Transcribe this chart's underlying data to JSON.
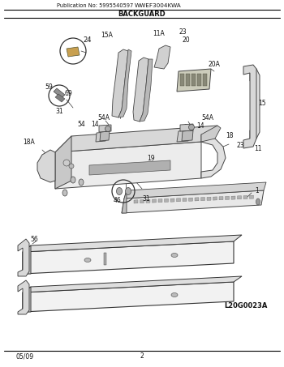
{
  "pub_no": "Publication No: 5995540597",
  "model": "WWEF3004KWA",
  "section": "BACKGUARD",
  "diagram_id": "L20G0023A",
  "footer_left": "05/09",
  "footer_center": "2",
  "bg_color": "#ffffff",
  "fig_width": 3.5,
  "fig_height": 4.53,
  "dpi": 100
}
